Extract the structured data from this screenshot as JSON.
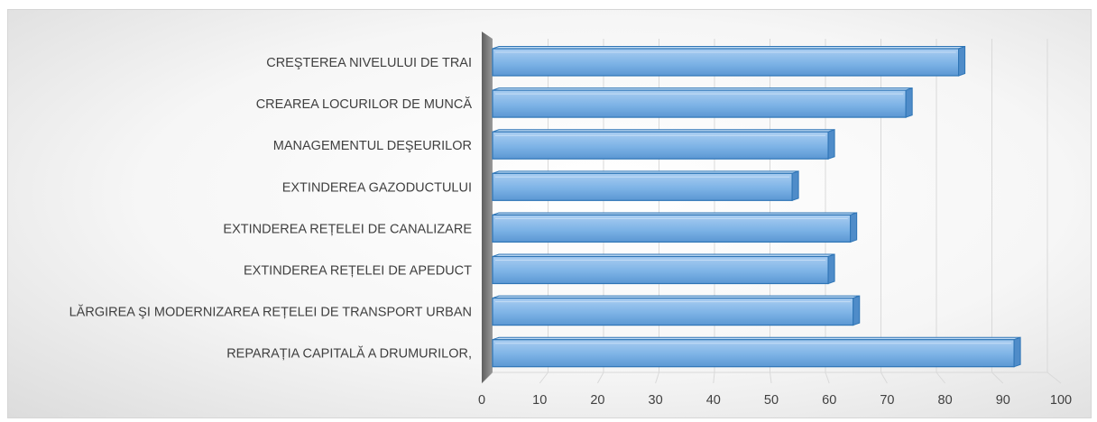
{
  "chart_data": {
    "type": "bar",
    "orientation": "horizontal",
    "style": "3d",
    "categories": [
      "CREŞTEREA NIVELULUI DE TRAI",
      "CREAREA LOCURILOR DE MUNCĂ",
      "MANAGEMENTUL DEŞEURILOR",
      "EXTINDEREA GAZODUCTULUI",
      "EXTINDEREA REȚELEI DE CANALIZARE",
      "EXTINDEREA REȚELEI DE APEDUCT",
      "LĂRGIREA ŞI MODERNIZAREA REȚELEI DE TRANSPORT URBAN",
      "REPARAȚIA CAPITALĂ A DRUMURILOR,"
    ],
    "values": [
      84,
      74.5,
      60.5,
      54,
      64.5,
      60.5,
      65,
      94
    ],
    "xlim": [
      0,
      100
    ],
    "x_ticks": [
      0,
      10,
      20,
      30,
      40,
      50,
      60,
      70,
      80,
      90,
      100
    ],
    "x_tick_labels": [
      "0",
      "10",
      "20",
      "30",
      "40",
      "50",
      "60",
      "70",
      "80",
      "90",
      "100"
    ],
    "grid": true,
    "legend": "none",
    "colors": {
      "bar": "#6fa8dc",
      "bar_light": "#9cc5ee",
      "bar_edge": "#2e75b6",
      "axis_wall": "#7f7f7f",
      "grid": "#d9d9d9"
    }
  }
}
